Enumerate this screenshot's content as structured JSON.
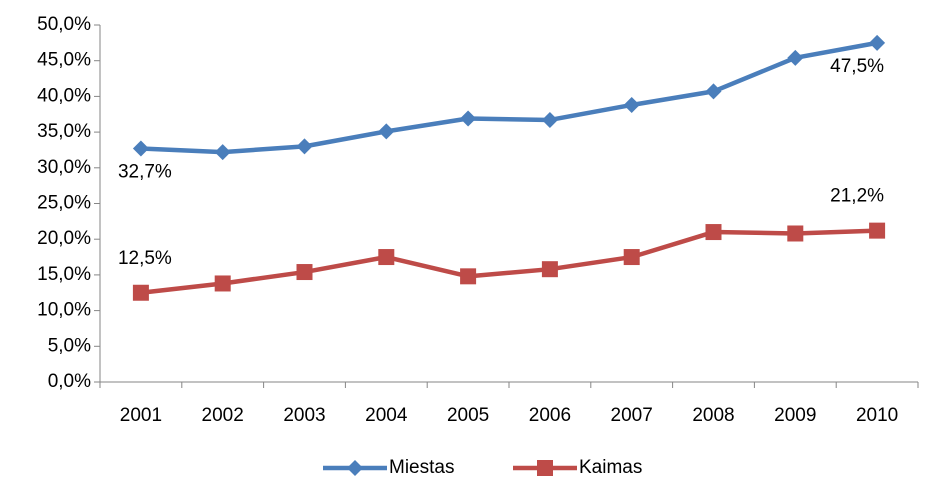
{
  "chart_data": {
    "type": "line",
    "categories": [
      "2001",
      "2002",
      "2003",
      "2004",
      "2005",
      "2006",
      "2007",
      "2008",
      "2009",
      "2010"
    ],
    "series": [
      {
        "name": "Miestas",
        "color": "#4a7ebb",
        "marker": "diamond",
        "values": [
          32.7,
          32.2,
          33.0,
          35.1,
          36.9,
          36.7,
          38.8,
          40.7,
          45.4,
          47.5
        ],
        "value_labels": [
          "32,7%",
          null,
          null,
          null,
          null,
          null,
          null,
          null,
          null,
          "47,5%"
        ]
      },
      {
        "name": "Kaimas",
        "color": "#be4b48",
        "marker": "square",
        "values": [
          12.5,
          13.8,
          15.4,
          17.5,
          14.8,
          15.8,
          17.5,
          21.0,
          20.8,
          21.2
        ],
        "value_labels": [
          "12,5%",
          null,
          null,
          null,
          null,
          null,
          null,
          null,
          null,
          "21,2%"
        ]
      }
    ],
    "ylim": [
      0,
      50
    ],
    "yticks": [
      {
        "value": 0,
        "label": "0,0%"
      },
      {
        "value": 5,
        "label": "5,0%"
      },
      {
        "value": 10,
        "label": "10,0%"
      },
      {
        "value": 15,
        "label": "15,0%"
      },
      {
        "value": 20,
        "label": "20,0%"
      },
      {
        "value": 25,
        "label": "25,0%"
      },
      {
        "value": 30,
        "label": "30,0%"
      },
      {
        "value": 35,
        "label": "35,0%"
      },
      {
        "value": 40,
        "label": "40,0%"
      },
      {
        "value": 45,
        "label": "45,0%"
      },
      {
        "value": 50,
        "label": "50,0%"
      }
    ],
    "grid": false,
    "legend": "bottom"
  }
}
